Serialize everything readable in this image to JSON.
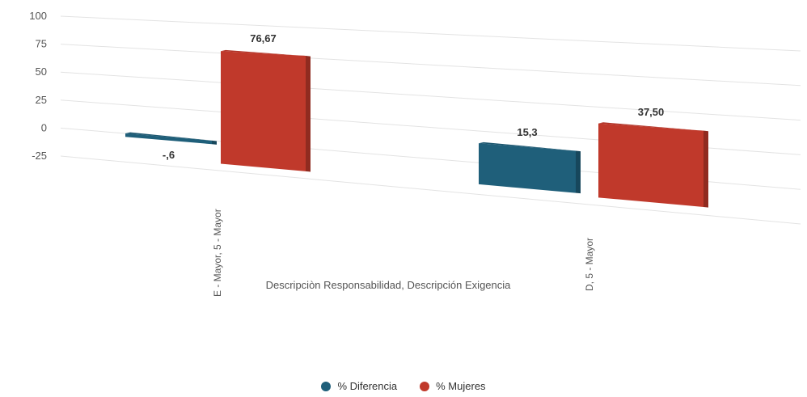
{
  "chart_data": {
    "type": "bar",
    "title": "",
    "xlabel": "Descripciòn Responsabilidad, Descripción Exigencia",
    "ylabel": "",
    "ylim": [
      -25,
      100
    ],
    "yticks": [
      "100",
      "75",
      "50",
      "25",
      "0",
      "-25"
    ],
    "categories": [
      "E - Mayor, 5 - Mayor",
      "D, 5 - Mayor"
    ],
    "series": [
      {
        "name": "% Diferencia",
        "color": "#1f5f7a",
        "values": [
          -0.6,
          15.3
        ],
        "labels": [
          "-,6",
          "15,3"
        ]
      },
      {
        "name": "% Mujeres",
        "color": "#c0392b",
        "values": [
          76.67,
          37.5
        ],
        "labels": [
          "76,67",
          "37,50"
        ]
      }
    ],
    "legend": "bottom",
    "grid": true
  }
}
